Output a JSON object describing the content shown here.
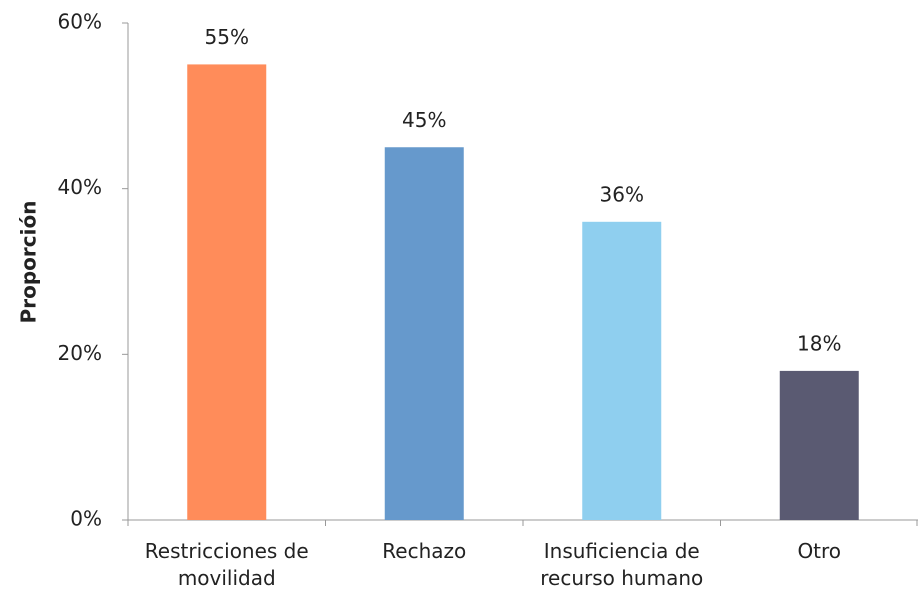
{
  "chart_data": {
    "type": "bar",
    "y_label": "Proporción",
    "categories": [
      [
        "Restricciones de",
        "movilidad"
      ],
      [
        "Rechazo"
      ],
      [
        "Insuficiencia de",
        "recurso humano"
      ],
      [
        "Otro"
      ]
    ],
    "values": [
      55,
      45,
      36,
      18
    ],
    "value_labels": [
      "55%",
      "45%",
      "36%",
      "18%"
    ],
    "colors": [
      "#ff8c5a",
      "#6699cc",
      "#8fcfef",
      "#5a5a72"
    ],
    "ylim": [
      0,
      60
    ],
    "yticks": [
      {
        "value": 0,
        "label": "0%"
      },
      {
        "value": 20,
        "label": "20%"
      },
      {
        "value": 40,
        "label": "40%"
      },
      {
        "value": 60,
        "label": "60%"
      }
    ],
    "grid": false
  }
}
